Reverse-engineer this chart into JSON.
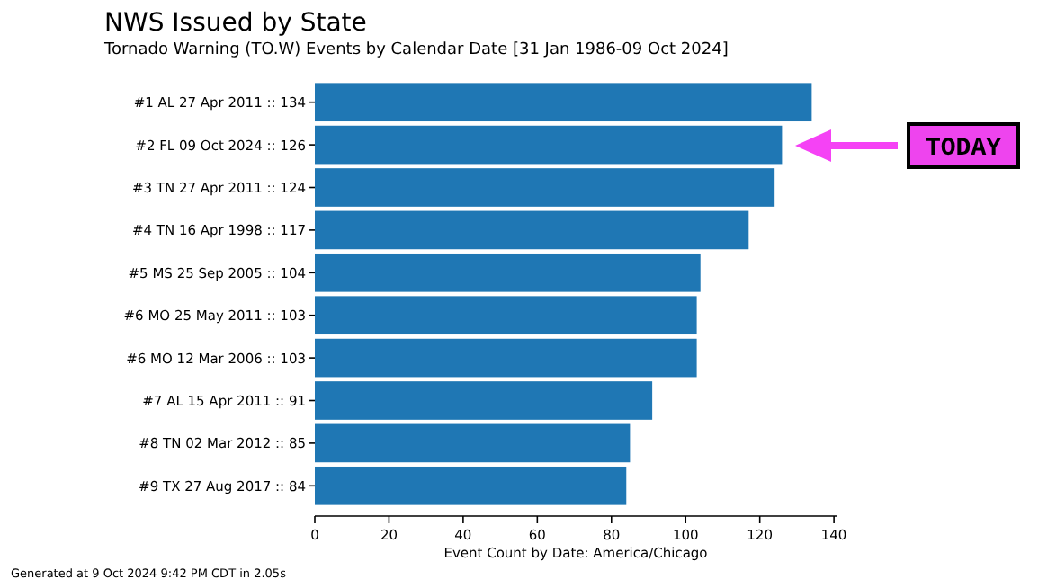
{
  "chart_data": {
    "type": "bar",
    "orientation": "horizontal",
    "title": "NWS Issued by State",
    "subtitle": "Tornado Warning (TO.W) Events by Calendar Date [31 Jan 1986-09 Oct 2024]",
    "xlabel": "Event Count by Date: America/Chicago",
    "categories": [
      "#1 AL 27 Apr 2011 :: 134",
      "#2 FL 09 Oct 2024 :: 126",
      "#3 TN 27 Apr 2011 :: 124",
      "#4 TN 16 Apr 1998 :: 117",
      "#5 MS 25 Sep 2005 :: 104",
      "#6 MO 25 May 2011 :: 103",
      "#6 MO 12 Mar 2006 :: 103",
      "#7 AL 15 Apr 2011 :: 91",
      "#8 TN 02 Mar 2012 :: 85",
      "#9 TX 27 Aug 2017 :: 84"
    ],
    "values": [
      134,
      126,
      124,
      117,
      104,
      103,
      103,
      91,
      85,
      84
    ],
    "color": "#1f77b4",
    "xlim": [
      0,
      140.7
    ],
    "xticks": [
      0,
      20,
      40,
      60,
      80,
      100,
      120,
      140
    ],
    "grid": false,
    "annotations": [
      "TODAY",
      "Generated at 9 Oct 2024 9:42 PM CDT in 2.05s"
    ]
  }
}
